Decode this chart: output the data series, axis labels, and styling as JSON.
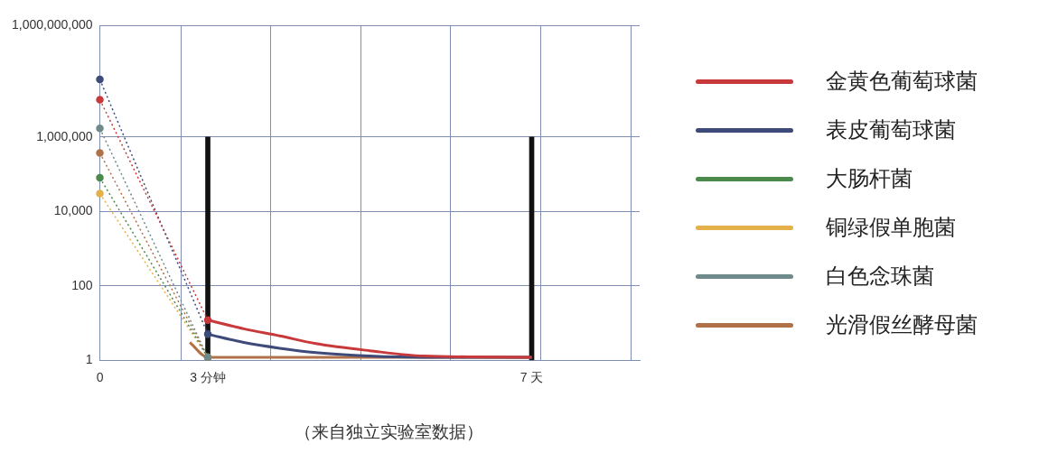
{
  "chart_data": {
    "type": "line",
    "log": "y",
    "grid": true,
    "legend": "right",
    "categories": [
      "0",
      null,
      null,
      null,
      null,
      null,
      "3 分钟",
      null,
      null,
      null,
      null,
      null,
      null,
      null,
      null,
      null,
      null,
      null,
      null,
      null,
      null,
      null,
      null,
      null,
      "7 天",
      null,
      null,
      null,
      null,
      null,
      null
    ],
    "ylim": [
      1,
      1000000000
    ],
    "yticks": [
      1,
      100,
      {
        "value": 10000,
        "label": "10,000"
      },
      {
        "value": 1000000,
        "label": "1,000,000"
      },
      {
        "value": 1000000000,
        "label": "1,000,000,000"
      }
    ],
    "annotations": [
      "（来自独立实验室数据）"
    ],
    "series": [
      {
        "type": "bar",
        "color": "#111111",
        "values": [
          null,
          null,
          null,
          null,
          null,
          null,
          1000000,
          null,
          null,
          null,
          null,
          null,
          null,
          null,
          null,
          null,
          null,
          null,
          null,
          null,
          null,
          null,
          null,
          null,
          1000000,
          null,
          null,
          null,
          null,
          null,
          null
        ]
      },
      {
        "color": "#c8393b",
        "line_style": "dotted",
        "marker": "circle",
        "values": [
          10000000,
          null,
          null,
          null,
          null,
          null,
          12,
          null,
          null,
          null,
          null,
          null,
          null,
          null,
          null,
          null,
          null,
          null,
          null,
          null,
          null,
          null,
          null,
          null,
          null,
          null,
          null,
          null,
          null,
          null,
          null
        ]
      },
      {
        "color": "#3d4a7a",
        "line_style": "dotted",
        "marker": "circle",
        "values": [
          35000000,
          null,
          null,
          null,
          null,
          null,
          5,
          null,
          null,
          null,
          null,
          null,
          null,
          null,
          null,
          null,
          null,
          null,
          null,
          null,
          null,
          null,
          null,
          null,
          null,
          null,
          null,
          null,
          null,
          null,
          null
        ]
      },
      {
        "color": "#6f8a8a",
        "line_style": "dotted",
        "marker": "circle",
        "values": [
          1700000,
          null,
          null,
          null,
          null,
          null,
          1.2,
          null,
          null,
          null,
          null,
          null,
          null,
          null,
          null,
          null,
          null,
          null,
          null,
          null,
          null,
          null,
          null,
          null,
          null,
          null,
          null,
          null,
          null,
          null,
          null
        ]
      },
      {
        "color": "#b07048",
        "line_style": "dotted",
        "marker": "circle",
        "values": [
          370000,
          null,
          null,
          null,
          null,
          null,
          1.2,
          null,
          null,
          null,
          null,
          null,
          null,
          null,
          null,
          null,
          null,
          null,
          null,
          null,
          null,
          null,
          null,
          null,
          null,
          null,
          null,
          null,
          null,
          null,
          null
        ]
      },
      {
        "color": "#4a8a4a",
        "line_style": "dotted",
        "marker": "circle",
        "values": [
          80000,
          null,
          null,
          null,
          null,
          null,
          1.2,
          null,
          null,
          null,
          null,
          null,
          null,
          null,
          null,
          null,
          null,
          null,
          null,
          null,
          null,
          null,
          null,
          null,
          null,
          null,
          null,
          null,
          null,
          null,
          null
        ]
      },
      {
        "color": "#e3b04a",
        "line_style": "dotted",
        "marker": "circle",
        "values": [
          30000,
          null,
          null,
          null,
          null,
          null,
          1.2,
          null,
          null,
          null,
          null,
          null,
          null,
          null,
          null,
          null,
          null,
          null,
          null,
          null,
          null,
          null,
          null,
          null,
          null,
          null,
          null,
          null,
          null,
          null,
          null
        ]
      },
      {
        "name": "金黄色葡萄球菌",
        "color": "#c8393b",
        "line_style": "solid",
        "marker": "none",
        "values": [
          null,
          null,
          null,
          null,
          null,
          null,
          12,
          null,
          7,
          null,
          4.5,
          null,
          2.8,
          null,
          null,
          1.8,
          null,
          null,
          1.3,
          null,
          null,
          null,
          null,
          null,
          1.2,
          null,
          null,
          null,
          null,
          null,
          null
        ]
      },
      {
        "name": "表皮葡萄球菌",
        "color": "#3d4a7a",
        "line_style": "solid",
        "marker": "none",
        "values": [
          null,
          null,
          null,
          null,
          null,
          null,
          5,
          null,
          3,
          null,
          2.1,
          null,
          1.6,
          null,
          null,
          1.3,
          null,
          null,
          1.2,
          null,
          null,
          null,
          null,
          null,
          1.2,
          null,
          null,
          null,
          null,
          null,
          null
        ]
      },
      {
        "name": "大肠杆菌",
        "color": "#4a8a4a",
        "line_style": "solid",
        "marker": "none",
        "values": [
          null,
          null,
          null,
          null,
          null,
          null,
          null,
          null,
          null,
          null,
          null,
          null,
          null,
          null,
          null,
          null,
          null,
          null,
          null,
          null,
          null,
          null,
          null,
          null,
          null,
          null,
          null,
          null,
          null,
          null,
          null
        ]
      },
      {
        "name": "铜绿假单胞菌",
        "color": "#e3b04a",
        "line_style": "solid",
        "marker": "none",
        "values": [
          null,
          null,
          null,
          null,
          null,
          null,
          null,
          null,
          null,
          null,
          null,
          null,
          null,
          null,
          null,
          null,
          null,
          null,
          null,
          null,
          null,
          null,
          null,
          null,
          null,
          null,
          null,
          null,
          null,
          null,
          null
        ]
      },
      {
        "name": "白色念珠菌",
        "color": "#6f8a8a",
        "line_style": "solid",
        "marker": "none",
        "values": [
          null,
          null,
          null,
          null,
          null,
          null,
          null,
          null,
          null,
          null,
          null,
          null,
          null,
          null,
          null,
          null,
          null,
          null,
          null,
          null,
          null,
          null,
          null,
          null,
          null,
          null,
          null,
          null,
          null,
          null,
          null
        ]
      },
      {
        "name": "光滑假丝酵母菌",
        "color": "#b07048",
        "line_style": "solid",
        "marker": "none",
        "values": [
          null,
          null,
          null,
          null,
          null,
          3,
          1.2,
          null,
          null,
          null,
          null,
          null,
          null,
          null,
          null,
          null,
          null,
          null,
          null,
          null,
          null,
          null,
          null,
          null,
          1.2,
          null,
          null,
          null,
          null,
          null,
          null
        ]
      }
    ]
  }
}
